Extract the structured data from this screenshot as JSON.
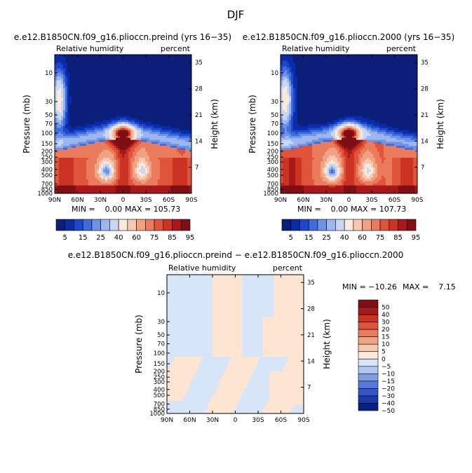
{
  "page_title": "DJF",
  "chart_data": [
    {
      "type": "heatmap",
      "title": "e.e12.B1850CN.f09_g16.plioccn.preind (yrs 16−35)",
      "left_label": "Relative humidity",
      "right_label": "percent",
      "ylabel": "Pressure (mb)",
      "ylabel_right": "Height (km)",
      "x_ticks": [
        "90N",
        "60N",
        "30N",
        "0",
        "30S",
        "60S",
        "90S"
      ],
      "y_ticks": [
        "10",
        "30",
        "50",
        "70",
        "100",
        "150",
        "200",
        "250",
        "300",
        "400",
        "500",
        "700",
        "850",
        "1000"
      ],
      "height_ticks": [
        "35",
        "28",
        "21",
        "14",
        "7"
      ],
      "min_label": "MIN =    0.00",
      "max_label": "MAX = 105.73",
      "colorbar_labels": [
        "5",
        "15",
        "25",
        "40",
        "60",
        "75",
        "85",
        "95"
      ],
      "fields": {
        "dry_top": 2,
        "low_humid": 88,
        "tropical_upper": 82,
        "tropical_subsidence": 22,
        "polar_strat": 45
      }
    },
    {
      "type": "heatmap",
      "title": "e.e12.B1850CN.f09_g16.plioccn.2000 (yrs 16−35)",
      "left_label": "Relative humidity",
      "right_label": "percent",
      "ylabel": "Pressure (mb)",
      "ylabel_right": "Height (km)",
      "x_ticks": [
        "90N",
        "60N",
        "30N",
        "0",
        "30S",
        "60S",
        "90S"
      ],
      "y_ticks": [
        "10",
        "30",
        "50",
        "70",
        "100",
        "150",
        "200",
        "250",
        "300",
        "400",
        "500",
        "700",
        "850",
        "1000"
      ],
      "height_ticks": [
        "35",
        "28",
        "21",
        "14",
        "7"
      ],
      "min_label": "MIN =    0.00",
      "max_label": "MAX = 107.73",
      "colorbar_labels": [
        "5",
        "15",
        "25",
        "40",
        "60",
        "75",
        "85",
        "95"
      ]
    },
    {
      "type": "heatmap",
      "title": "e.e12.B1850CN.f09_g16.plioccn.preind − e.e12.B1850CN.f09_g16.plioccn.2000",
      "left_label": "Relative humidity",
      "right_label": "percent",
      "ylabel": "Pressure (mb)",
      "ylabel_right": "Height (km)",
      "x_ticks": [
        "90N",
        "60N",
        "30N",
        "0",
        "30S",
        "60S",
        "90S"
      ],
      "y_ticks": [
        "10",
        "30",
        "50",
        "70",
        "100",
        "150",
        "200",
        "250",
        "300",
        "400",
        "500",
        "700",
        "850",
        "1000"
      ],
      "height_ticks": [
        "35",
        "28",
        "21",
        "14",
        "7"
      ],
      "min_label": "MIN = −10.26",
      "max_label": "MAX =    7.15",
      "colorbar_labels": [
        "50",
        "40",
        "30",
        "20",
        "15",
        "10",
        "5",
        "0",
        "−5",
        "−10",
        "−15",
        "−20",
        "−30",
        "−40",
        "−50"
      ]
    }
  ],
  "colors": {
    "abs_scale": [
      "#0a1e7a",
      "#0b2ca8",
      "#1d47cc",
      "#3f6cdc",
      "#6e92e6",
      "#9cb6ee",
      "#c8d8f4",
      "#fbe9dc",
      "#f6c9b0",
      "#f0a384",
      "#ea7b5d",
      "#e0543b",
      "#cc3322",
      "#a8171a",
      "#7e0f14"
    ],
    "diff_scale": [
      "#7e0f14",
      "#a8171a",
      "#cc3322",
      "#e0543b",
      "#ea7b5d",
      "#f0a384",
      "#f6c9b0",
      "#fbe9dc",
      "#d6e5f7",
      "#aec6f0",
      "#7e9ee6",
      "#5779dc",
      "#3156cc",
      "#1b3aa8",
      "#0a2080"
    ],
    "diff_pos": "#fde5d2",
    "diff_neg": "#d6e5f7"
  }
}
